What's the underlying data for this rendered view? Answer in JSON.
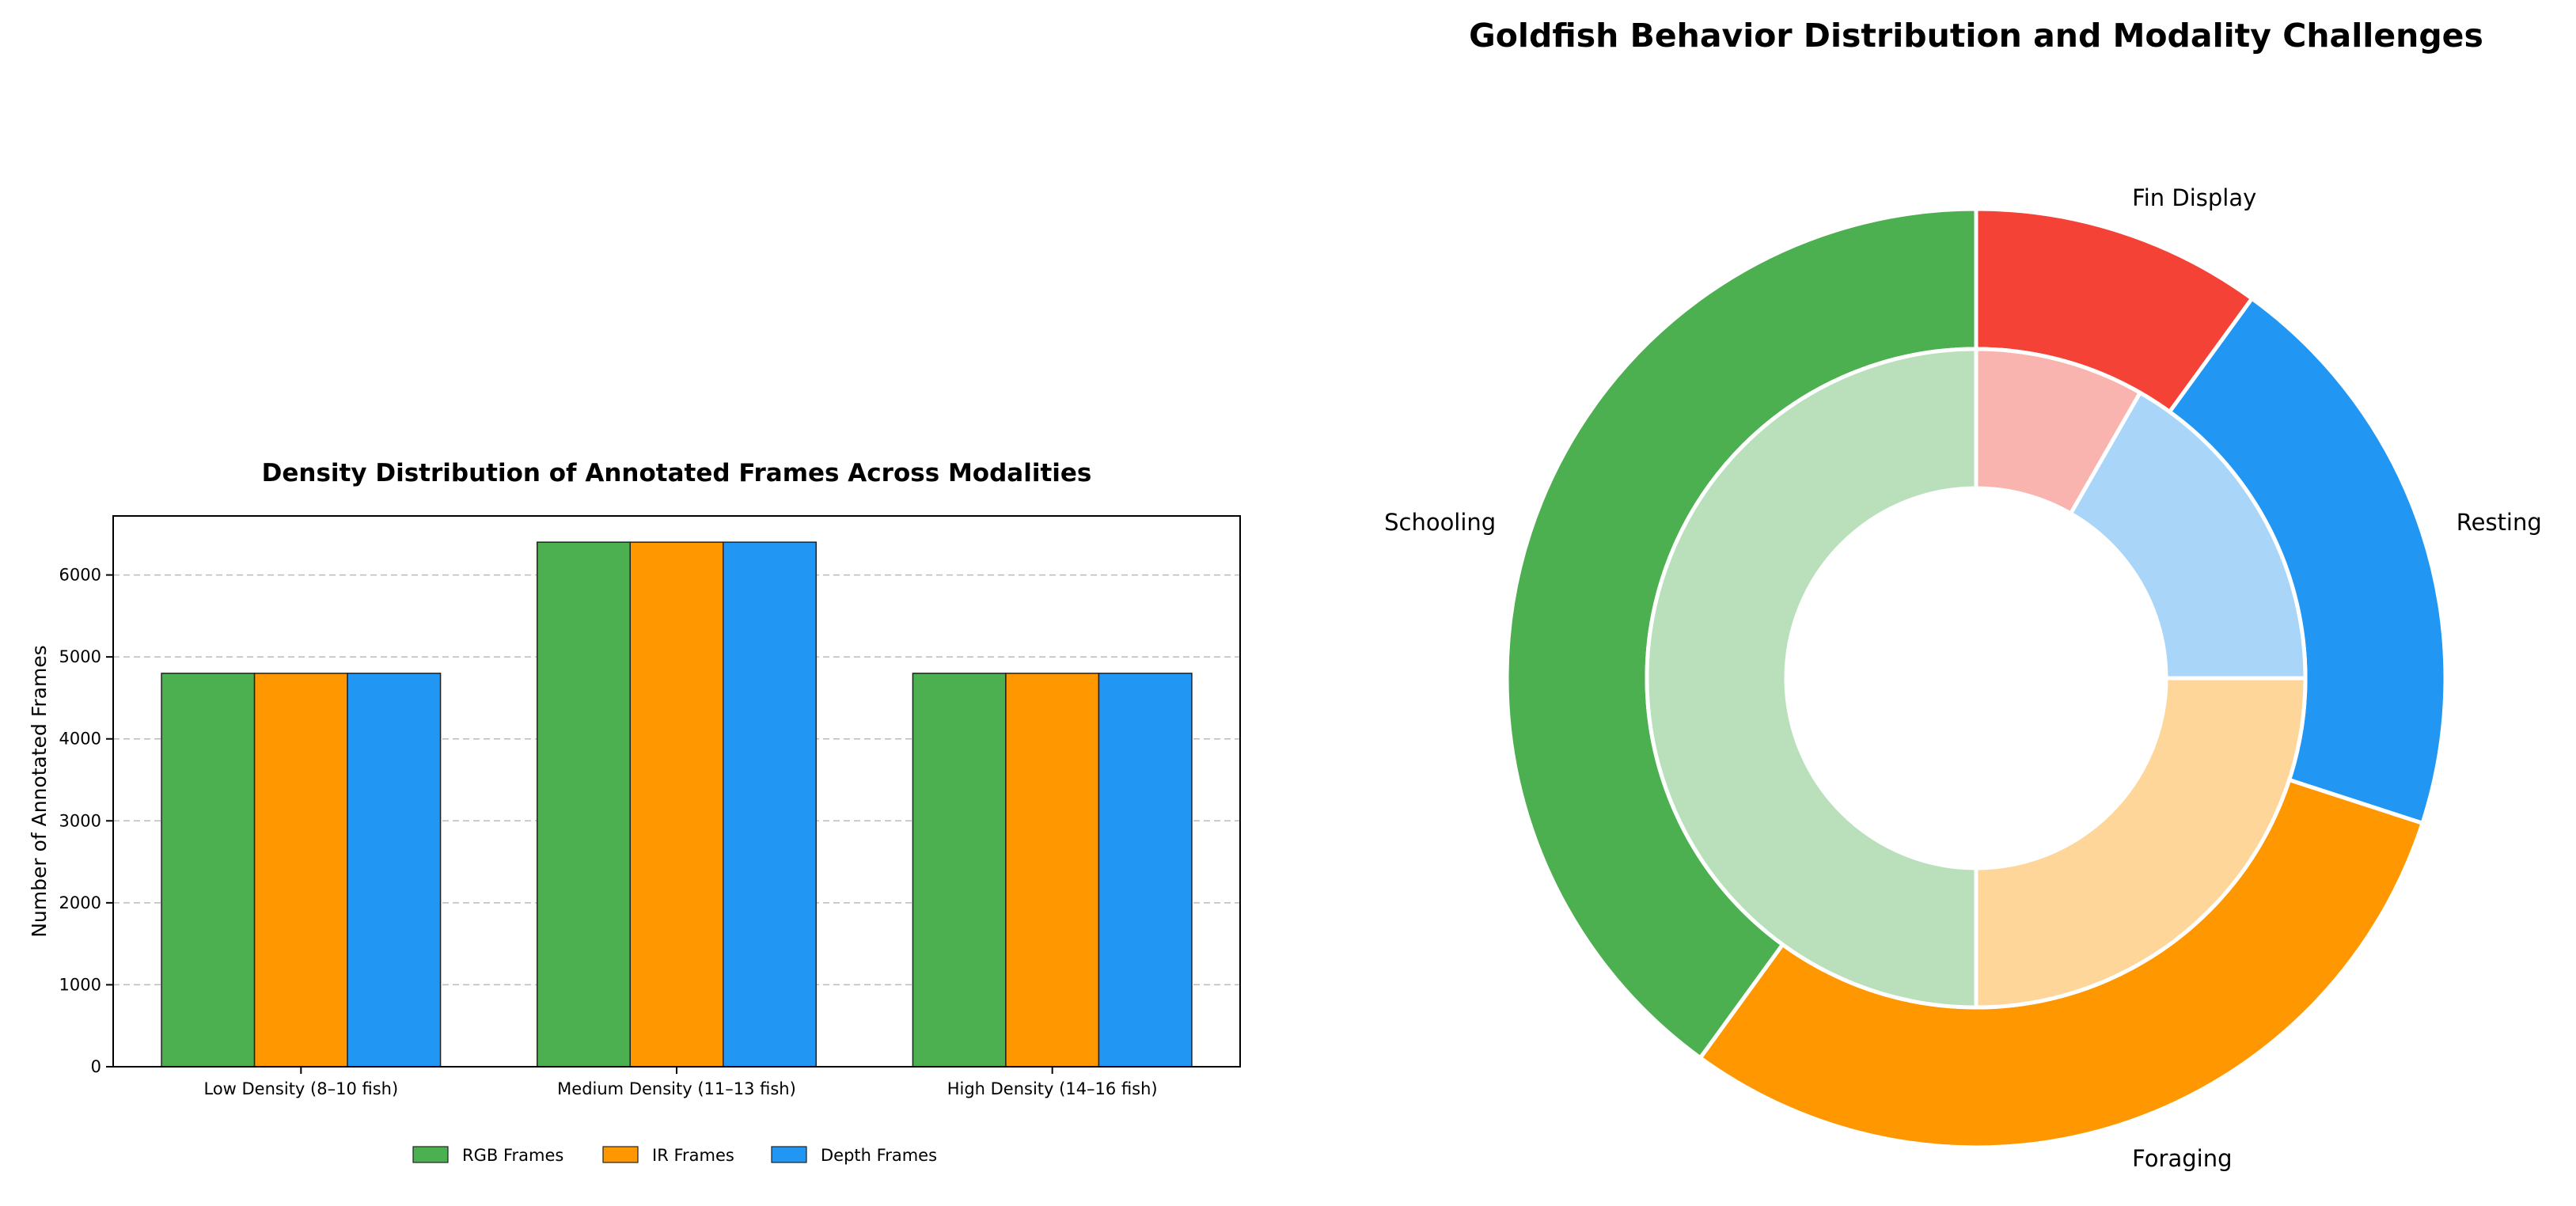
{
  "chart_data": [
    {
      "type": "bar",
      "title": "Density Distribution of Annotated Frames Across Modalities",
      "xlabel": "",
      "ylabel": "Number of Annotated Frames",
      "categories": [
        "Low Density (8–10 fish)",
        "Medium Density (11–13 fish)",
        "High Density (14–16 fish)"
      ],
      "series": [
        {
          "name": "RGB Frames",
          "values": [
            4800,
            6400,
            4800
          ],
          "color": "#4CAF50"
        },
        {
          "name": "IR Frames",
          "values": [
            4800,
            6400,
            4800
          ],
          "color": "#FF9800"
        },
        {
          "name": "Depth Frames",
          "values": [
            4800,
            6400,
            4800
          ],
          "color": "#2196F3"
        }
      ],
      "ylim": [
        0,
        6720
      ],
      "yticks": [
        0,
        1000,
        2000,
        3000,
        4000,
        5000,
        6000
      ],
      "grid": "y-dashed",
      "legend": "bottom-center"
    },
    {
      "type": "pie",
      "title": "Goldfish Behavior Distribution and Modality Challenges",
      "style": "nested-donut",
      "outer": [
        {
          "label": "Fin Display",
          "value": 10,
          "color": "#F44336"
        },
        {
          "label": "Resting",
          "value": 20,
          "color": "#2196F3"
        },
        {
          "label": "Foraging",
          "value": 30,
          "color": "#FF9800"
        },
        {
          "label": "Schooling",
          "value": 40,
          "color": "#4CAF50"
        }
      ],
      "inner": [
        {
          "value": 8.3,
          "color": "#F9B4B0"
        },
        {
          "value": 16.7,
          "color": "#A8D5F8"
        },
        {
          "value": 25,
          "color": "#FFD699"
        },
        {
          "value": 50,
          "color": "#B9E0BB"
        }
      ]
    }
  ]
}
